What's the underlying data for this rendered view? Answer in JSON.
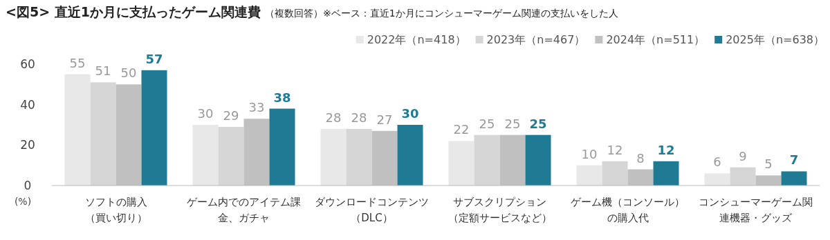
{
  "chart_data": {
    "type": "bar",
    "title": "<図5> 直近1か月に支払ったゲーム関連費",
    "subtitle": "（複数回答）※ベース：直近1か月にコンシューマーゲーム関連の支払いをした人",
    "ylabel": "(%)",
    "categories": [
      "ソフトの購入（買い切り）",
      "ゲーム内でのアイテム課金、ガチャ",
      "ダウンロードコンテンツ（DLC）",
      "サブスクリプション（定額サービスなど）",
      "ゲーム機（コンソール）の購入代",
      "コンシューマーゲーム関連機器・グッズ"
    ],
    "series": [
      {
        "name": "2022年（n=418）",
        "color": "#e8e8e8",
        "values": [
          55,
          30,
          28,
          22,
          10,
          6
        ]
      },
      {
        "name": "2023年（n=467）",
        "color": "#d6d6d6",
        "values": [
          51,
          29,
          28,
          25,
          12,
          9
        ]
      },
      {
        "name": "2024年（n=511）",
        "color": "#c0c0c0",
        "values": [
          50,
          33,
          27,
          25,
          8,
          5
        ]
      },
      {
        "name": "2025年（n=638）",
        "color": "#1e7b93",
        "values": [
          57,
          38,
          30,
          25,
          12,
          7
        ]
      }
    ],
    "ylim": [
      0,
      60
    ],
    "yticks": [
      0,
      20,
      40,
      60
    ],
    "data_labels": true,
    "grid": false,
    "legend": "top right"
  }
}
